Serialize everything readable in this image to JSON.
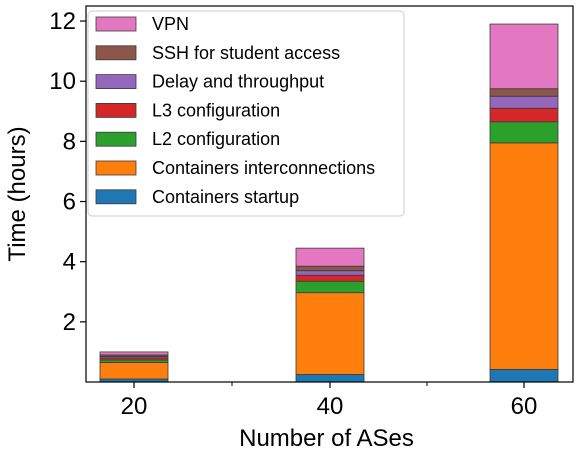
{
  "chart_data": {
    "type": "bar",
    "stacked": true,
    "categories": [
      "20",
      "40",
      "60"
    ],
    "xlabel": "Number of ASes",
    "ylabel": "Time (hours)",
    "ylim": [
      0,
      12.5
    ],
    "yticks": [
      2,
      4,
      6,
      8,
      10,
      12
    ],
    "grid": false,
    "legend_position": "top-left",
    "series": [
      {
        "name": "Containers startup",
        "color": "#1f77b4",
        "values": [
          0.1,
          0.25,
          0.42
        ]
      },
      {
        "name": "Containers interconnections",
        "color": "#ff7f0e",
        "values": [
          0.55,
          2.72,
          7.53
        ]
      },
      {
        "name": "L2 configuration",
        "color": "#2ca02c",
        "values": [
          0.08,
          0.38,
          0.7
        ]
      },
      {
        "name": "L3 configuration",
        "color": "#d62728",
        "values": [
          0.07,
          0.2,
          0.45
        ]
      },
      {
        "name": "Delay and throughput",
        "color": "#9467bd",
        "values": [
          0.05,
          0.15,
          0.4
        ]
      },
      {
        "name": "SSH for student access",
        "color": "#8c564b",
        "values": [
          0.05,
          0.15,
          0.25
        ]
      },
      {
        "name": "VPN",
        "color": "#e377c2",
        "values": [
          0.1,
          0.6,
          2.15
        ]
      }
    ]
  }
}
